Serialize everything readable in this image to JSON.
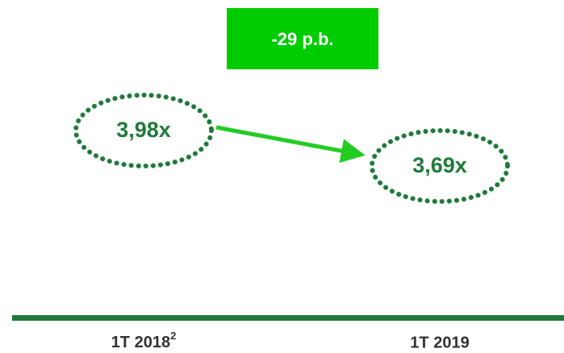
{
  "badge": "-29 p.b.",
  "nodes": [
    {
      "label": "3,98x"
    },
    {
      "label": "3,69x"
    }
  ],
  "periods": [
    {
      "label": "1T 2018",
      "note": "2"
    },
    {
      "label": "1T 2019"
    }
  ]
}
